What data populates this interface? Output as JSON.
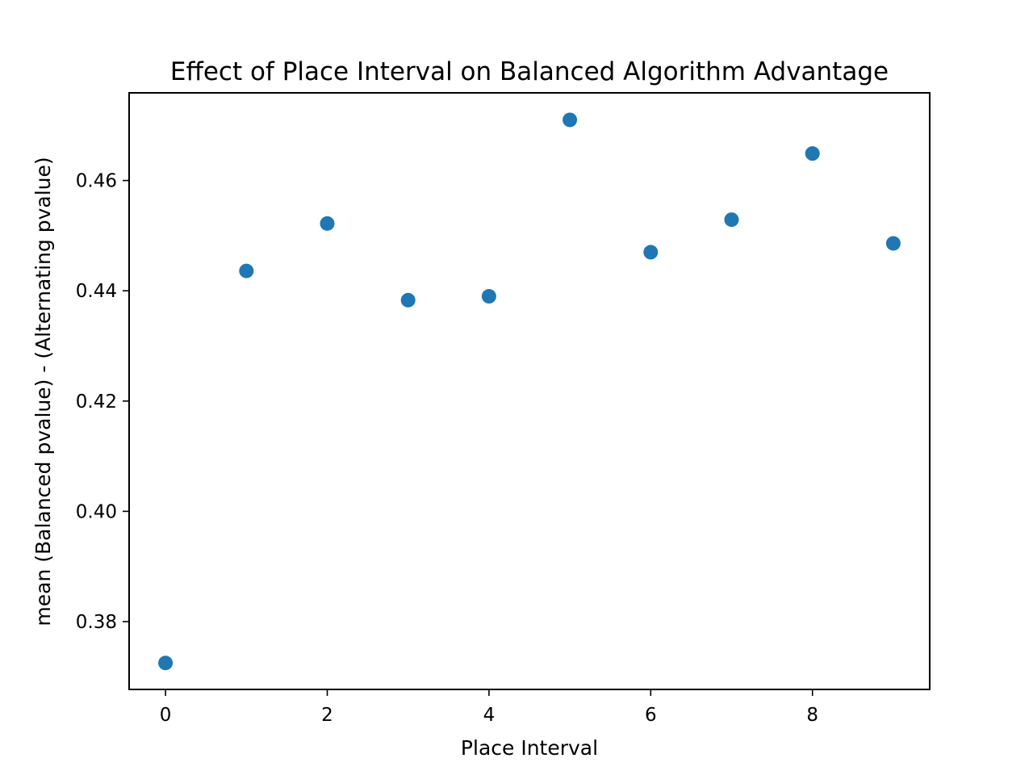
{
  "chart_data": {
    "type": "scatter",
    "title": "Effect of Place Interval on Balanced Algorithm Advantage",
    "xlabel": "Place Interval",
    "ylabel": "mean (Balanced pvalue) - (Alternating pvalue)",
    "xlim": [
      -0.45,
      9.45
    ],
    "ylim": [
      0.3677,
      0.4759
    ],
    "xticks": [
      0,
      2,
      4,
      6,
      8
    ],
    "xtick_labels": [
      "0",
      "2",
      "4",
      "6",
      "8"
    ],
    "yticks": [
      0.38,
      0.4,
      0.42,
      0.44,
      0.46
    ],
    "ytick_labels": [
      "0.38",
      "0.40",
      "0.42",
      "0.44",
      "0.46"
    ],
    "grid": false,
    "legend": "none",
    "series": [
      {
        "color": "#1f77b4",
        "x": [
          0,
          1,
          2,
          3,
          4,
          5,
          6,
          7,
          8,
          9
        ],
        "y": [
          0.3725,
          0.4436,
          0.4522,
          0.4383,
          0.439,
          0.471,
          0.447,
          0.4529,
          0.4649,
          0.4486
        ]
      }
    ]
  }
}
